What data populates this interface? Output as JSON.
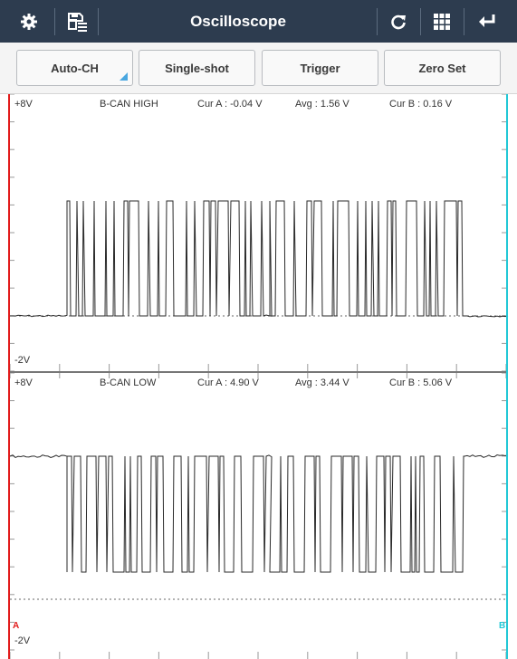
{
  "toolbar": {
    "title": "Oscilloscope",
    "icons": [
      "gear-icon",
      "save-list-icon",
      "refresh-icon",
      "grid-icon",
      "back-icon"
    ]
  },
  "buttons": [
    {
      "label": "Auto-CH"
    },
    {
      "label": "Single-shot"
    },
    {
      "label": "Trigger"
    },
    {
      "label": "Zero Set"
    }
  ],
  "channels": [
    {
      "top_label": "+8V",
      "name": "B-CAN HIGH",
      "cur_a": "Cur A : -0.04 V",
      "avg": "Avg : 1.56 V",
      "cur_b": "Cur B : 0.16 V",
      "bottom_label": "-2V"
    },
    {
      "top_label": "+8V",
      "name": "B-CAN LOW",
      "cur_a": "Cur A : 4.90 V",
      "avg": "Avg : 3.44 V",
      "cur_b": "Cur B : 5.06 V",
      "bottom_label": "-2V"
    }
  ],
  "cursor_markers": {
    "a": "A",
    "b": "B"
  },
  "colors": {
    "toolbar_bg": "#2d3c4f",
    "cursor_a": "#e21b1b",
    "cursor_b": "#22c8d6",
    "accent": "#4aa7e0"
  }
}
